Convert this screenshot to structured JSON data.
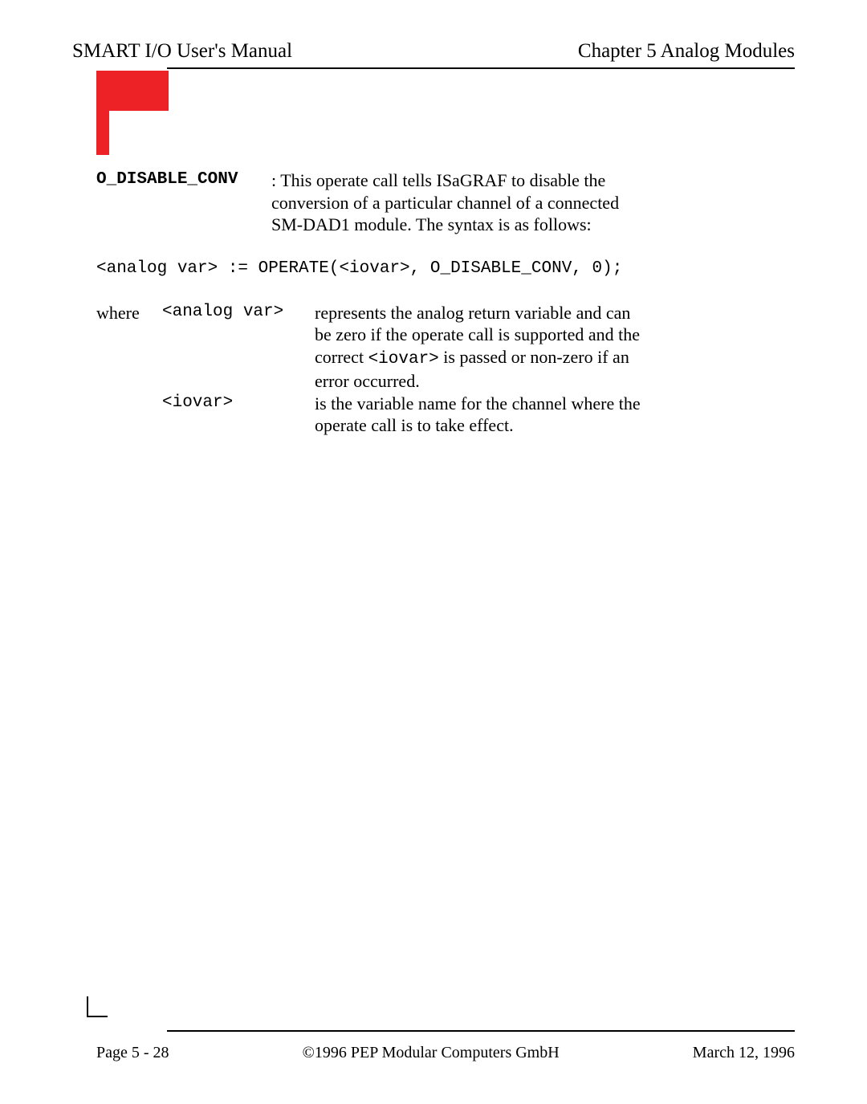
{
  "header": {
    "left": "SMART I/O User's Manual",
    "right": "Chapter 5  Analog Modules"
  },
  "decor": {
    "red_block_color": "#ec2227"
  },
  "body": {
    "def_label": "O_DISABLE_CONV",
    "def_colon": ":",
    "def_text_l1": "This operate call tells ISaGRAF to disable the",
    "def_text_l2": "conversion of a particular channel of a connected",
    "def_text_l3": "SM-DAD1 module. The syntax is as follows:",
    "code_line": "<analog var> := OPERATE(<iovar>, O_DISABLE_CONV, 0);",
    "where_word": "where",
    "term1": "<analog var>",
    "desc1_l1": "represents the analog return variable and can",
    "desc1_l2": "be zero if the operate call is supported and the",
    "desc1_l3a": "correct ",
    "desc1_l3_mono": "<iovar>",
    "desc1_l3b": " is passed or non-zero if an",
    "desc1_l4": "error occurred.",
    "term2": "<iovar>",
    "desc2_l1": "is the variable name for the channel where the",
    "desc2_l2": "operate call is to take effect."
  },
  "footer": {
    "left": "Page 5 - 28",
    "center": "©1996 PEP Modular Computers GmbH",
    "right": "March 12, 1996"
  }
}
